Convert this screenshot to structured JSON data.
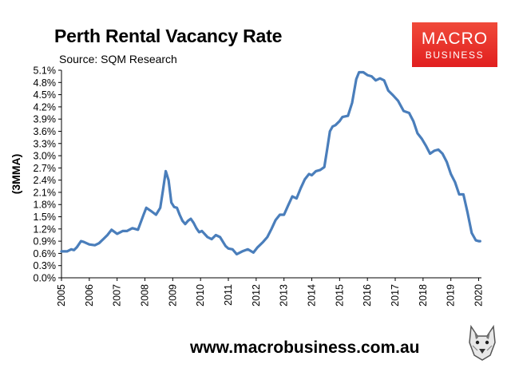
{
  "header": {
    "title": "Perth Rental Vacancy Rate",
    "source": "Source: SQM Research"
  },
  "logo": {
    "line1": "MACRO",
    "line2": "BUSINESS"
  },
  "footer": {
    "url": "www.macrobusiness.com.au"
  },
  "chart_data": {
    "type": "line",
    "title": "Perth Rental Vacancy Rate",
    "subtitle": "Source: SQM Research",
    "ylabel": "(3MMA)",
    "xlabel": "",
    "xlim": [
      2005,
      2020.1
    ],
    "ylim": [
      0.0,
      5.1
    ],
    "x_ticks": [
      "2005",
      "2006",
      "2007",
      "2008",
      "2009",
      "2010",
      "2011",
      "2012",
      "2013",
      "2014",
      "2015",
      "2016",
      "2017",
      "2018",
      "2019",
      "2020"
    ],
    "y_ticks": [
      "0.0%",
      "0.3%",
      "0.6%",
      "0.9%",
      "1.2%",
      "1.5%",
      "1.8%",
      "2.1%",
      "2.4%",
      "2.7%",
      "3.0%",
      "3.3%",
      "3.6%",
      "3.9%",
      "4.2%",
      "4.5%",
      "4.8%",
      "5.1%"
    ],
    "grid": false,
    "legend": "none",
    "line_color": "#4a7ebb",
    "series": [
      {
        "x": [
          2005.0,
          2005.2,
          2005.35,
          2005.45,
          2005.55,
          2005.7,
          2005.8,
          2006.0,
          2006.2,
          2006.35,
          2006.5,
          2006.65,
          2006.8,
          2007.0,
          2007.2,
          2007.35,
          2007.55,
          2007.75,
          2007.95,
          2008.05,
          2008.2,
          2008.4,
          2008.55,
          2008.65,
          2008.75,
          2008.85,
          2008.95,
          2009.05,
          2009.15,
          2009.25,
          2009.35,
          2009.45,
          2009.55,
          2009.65,
          2009.75,
          2009.85,
          2009.95,
          2010.05,
          2010.25,
          2010.4,
          2010.55,
          2010.7,
          2010.9,
          2011.0,
          2011.15,
          2011.3,
          2011.5,
          2011.7,
          2011.9,
          2012.05,
          2012.25,
          2012.4,
          2012.55,
          2012.7,
          2012.85,
          2013.0,
          2013.15,
          2013.3,
          2013.45,
          2013.6,
          2013.75,
          2013.9,
          2014.0,
          2014.15,
          2014.3,
          2014.45,
          2014.55,
          2014.65,
          2014.75,
          2014.85,
          2015.0,
          2015.1,
          2015.3,
          2015.45,
          2015.6,
          2015.7,
          2015.85,
          2016.0,
          2016.15,
          2016.3,
          2016.45,
          2016.6,
          2016.75,
          2016.9,
          2017.1,
          2017.3,
          2017.5,
          2017.65,
          2017.8,
          2017.95,
          2018.1,
          2018.25,
          2018.4,
          2018.55,
          2018.7,
          2018.85,
          2019.0,
          2019.15,
          2019.3,
          2019.45,
          2019.6,
          2019.75,
          2019.9,
          2020.0,
          2020.05
        ],
        "y": [
          0.65,
          0.65,
          0.7,
          0.68,
          0.75,
          0.9,
          0.88,
          0.82,
          0.8,
          0.85,
          0.95,
          1.05,
          1.18,
          1.08,
          1.15,
          1.15,
          1.22,
          1.18,
          1.55,
          1.72,
          1.65,
          1.55,
          1.72,
          2.15,
          2.62,
          2.4,
          1.85,
          1.74,
          1.72,
          1.55,
          1.4,
          1.32,
          1.4,
          1.45,
          1.35,
          1.22,
          1.12,
          1.15,
          1.0,
          0.95,
          1.05,
          1.0,
          0.78,
          0.72,
          0.7,
          0.58,
          0.65,
          0.7,
          0.62,
          0.75,
          0.88,
          1.0,
          1.2,
          1.42,
          1.55,
          1.55,
          1.78,
          2.0,
          1.95,
          2.2,
          2.42,
          2.55,
          2.52,
          2.62,
          2.65,
          2.72,
          3.15,
          3.6,
          3.72,
          3.75,
          3.85,
          3.95,
          3.98,
          4.3,
          4.88,
          5.05,
          5.05,
          4.98,
          4.95,
          4.85,
          4.9,
          4.85,
          4.6,
          4.5,
          4.35,
          4.1,
          4.05,
          3.85,
          3.55,
          3.42,
          3.25,
          3.05,
          3.12,
          3.15,
          3.05,
          2.85,
          2.55,
          2.35,
          2.05,
          2.05,
          1.6,
          1.1,
          0.92,
          0.9,
          0.9
        ]
      }
    ]
  }
}
